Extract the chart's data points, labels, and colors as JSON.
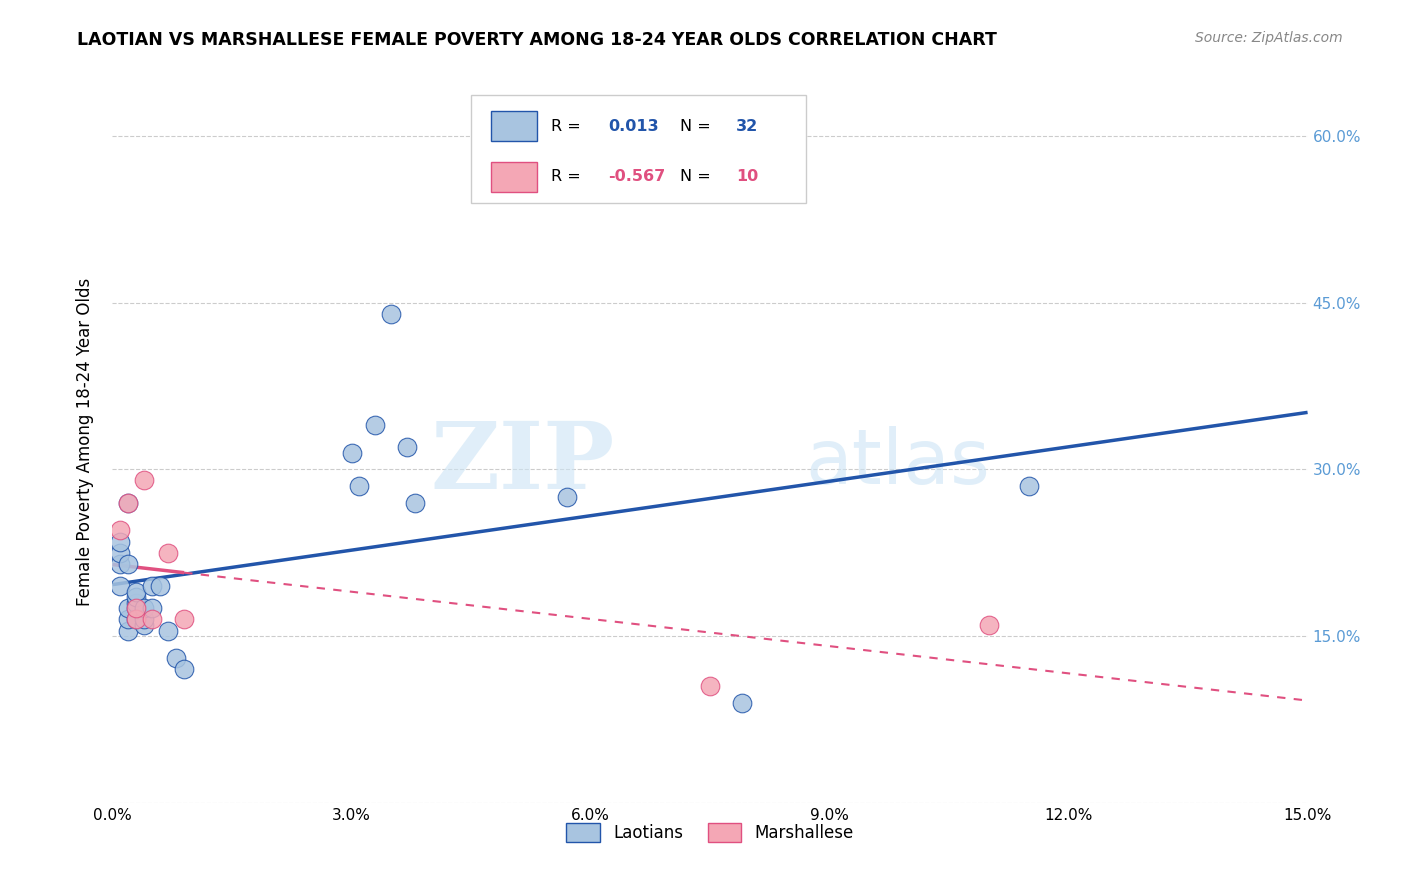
{
  "title": "LAOTIAN VS MARSHALLESE FEMALE POVERTY AMONG 18-24 YEAR OLDS CORRELATION CHART",
  "source": "Source: ZipAtlas.com",
  "ylabel": "Female Poverty Among 18-24 Year Olds",
  "xlim": [
    0.0,
    0.15
  ],
  "ylim": [
    0.0,
    0.65
  ],
  "xticks": [
    0.0,
    0.03,
    0.06,
    0.09,
    0.12,
    0.15
  ],
  "yticks": [
    0.0,
    0.15,
    0.3,
    0.45,
    0.6
  ],
  "ytick_labels": [
    "",
    "15.0%",
    "30.0%",
    "45.0%",
    "60.0%"
  ],
  "xtick_labels": [
    "0.0%",
    "3.0%",
    "6.0%",
    "9.0%",
    "12.0%",
    "15.0%"
  ],
  "laotian_R": "0.013",
  "laotian_N": "32",
  "marshallese_R": "-0.567",
  "marshallese_N": "10",
  "laotian_color": "#a8c4e0",
  "marshallese_color": "#f4a7b5",
  "laotian_line_color": "#2255aa",
  "marshallese_line_color": "#e05080",
  "watermark_zip": "ZIP",
  "watermark_atlas": "atlas",
  "laotian_x": [
    0.001,
    0.001,
    0.001,
    0.001,
    0.002,
    0.002,
    0.002,
    0.002,
    0.002,
    0.003,
    0.003,
    0.003,
    0.003,
    0.003,
    0.004,
    0.004,
    0.004,
    0.005,
    0.005,
    0.006,
    0.007,
    0.008,
    0.009,
    0.03,
    0.031,
    0.033,
    0.035,
    0.037,
    0.038,
    0.057,
    0.079,
    0.115
  ],
  "laotian_y": [
    0.195,
    0.215,
    0.225,
    0.235,
    0.155,
    0.165,
    0.175,
    0.215,
    0.27,
    0.175,
    0.18,
    0.185,
    0.19,
    0.165,
    0.16,
    0.165,
    0.175,
    0.175,
    0.195,
    0.195,
    0.155,
    0.13,
    0.12,
    0.315,
    0.285,
    0.34,
    0.44,
    0.32,
    0.27,
    0.275,
    0.09,
    0.285
  ],
  "marshallese_x": [
    0.001,
    0.002,
    0.003,
    0.003,
    0.004,
    0.005,
    0.007,
    0.009,
    0.075,
    0.11
  ],
  "marshallese_y": [
    0.245,
    0.27,
    0.165,
    0.175,
    0.29,
    0.165,
    0.225,
    0.165,
    0.105,
    0.16
  ],
  "background_color": "#ffffff",
  "grid_color": "#cccccc",
  "right_ytick_color": "#5b9bd5",
  "legend_laotian_label": "Laotians",
  "legend_marshallese_label": "Marshallese"
}
